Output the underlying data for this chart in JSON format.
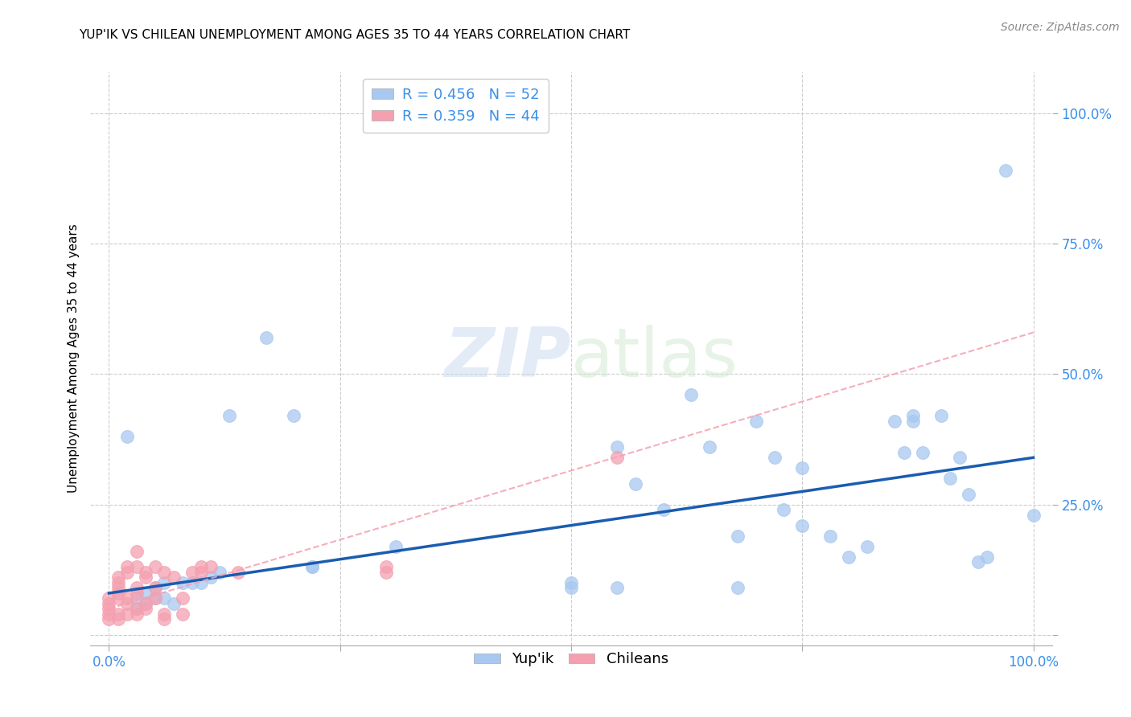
{
  "title": "YUP'IK VS CHILEAN UNEMPLOYMENT AMONG AGES 35 TO 44 YEARS CORRELATION CHART",
  "source": "Source: ZipAtlas.com",
  "ylabel": "Unemployment Among Ages 35 to 44 years",
  "xlim": [
    -0.02,
    1.02
  ],
  "ylim": [
    -0.02,
    1.08
  ],
  "xticks": [
    0.0,
    0.25,
    0.5,
    0.75,
    1.0
  ],
  "yticks": [
    0.0,
    0.25,
    0.5,
    0.75,
    1.0
  ],
  "xticklabels": [
    "0.0%",
    "",
    "",
    "",
    "100.0%"
  ],
  "yticklabels": [
    "",
    "25.0%",
    "50.0%",
    "75.0%",
    "100.0%"
  ],
  "legend_labels": [
    "Yup'ik",
    "Chileans"
  ],
  "blue_color": "#A8C8F0",
  "pink_color": "#F4A0B0",
  "trendline_blue_color": "#1A5CB0",
  "trendline_pink_color": "#D04060",
  "watermark_zip": "ZIP",
  "watermark_atlas": "atlas",
  "blue_dots": [
    [
      0.02,
      0.38
    ],
    [
      0.03,
      0.07
    ],
    [
      0.03,
      0.05
    ],
    [
      0.04,
      0.08
    ],
    [
      0.04,
      0.06
    ],
    [
      0.05,
      0.09
    ],
    [
      0.05,
      0.07
    ],
    [
      0.06,
      0.1
    ],
    [
      0.06,
      0.07
    ],
    [
      0.07,
      0.06
    ],
    [
      0.08,
      0.1
    ],
    [
      0.09,
      0.1
    ],
    [
      0.1,
      0.1
    ],
    [
      0.11,
      0.11
    ],
    [
      0.12,
      0.12
    ],
    [
      0.13,
      0.42
    ],
    [
      0.17,
      0.57
    ],
    [
      0.2,
      0.42
    ],
    [
      0.22,
      0.13
    ],
    [
      0.22,
      0.13
    ],
    [
      0.31,
      0.17
    ],
    [
      0.5,
      0.1
    ],
    [
      0.5,
      0.09
    ],
    [
      0.55,
      0.09
    ],
    [
      0.55,
      0.36
    ],
    [
      0.57,
      0.29
    ],
    [
      0.6,
      0.24
    ],
    [
      0.63,
      0.46
    ],
    [
      0.65,
      0.36
    ],
    [
      0.68,
      0.19
    ],
    [
      0.68,
      0.09
    ],
    [
      0.7,
      0.41
    ],
    [
      0.72,
      0.34
    ],
    [
      0.73,
      0.24
    ],
    [
      0.75,
      0.32
    ],
    [
      0.75,
      0.21
    ],
    [
      0.78,
      0.19
    ],
    [
      0.8,
      0.15
    ],
    [
      0.82,
      0.17
    ],
    [
      0.85,
      0.41
    ],
    [
      0.86,
      0.35
    ],
    [
      0.87,
      0.42
    ],
    [
      0.87,
      0.41
    ],
    [
      0.88,
      0.35
    ],
    [
      0.9,
      0.42
    ],
    [
      0.91,
      0.3
    ],
    [
      0.92,
      0.34
    ],
    [
      0.93,
      0.27
    ],
    [
      0.94,
      0.14
    ],
    [
      0.95,
      0.15
    ],
    [
      0.97,
      0.89
    ],
    [
      1.0,
      0.23
    ]
  ],
  "pink_dots": [
    [
      0.0,
      0.04
    ],
    [
      0.0,
      0.03
    ],
    [
      0.0,
      0.05
    ],
    [
      0.0,
      0.06
    ],
    [
      0.0,
      0.07
    ],
    [
      0.01,
      0.03
    ],
    [
      0.01,
      0.04
    ],
    [
      0.01,
      0.07
    ],
    [
      0.01,
      0.08
    ],
    [
      0.01,
      0.09
    ],
    [
      0.01,
      0.1
    ],
    [
      0.01,
      0.11
    ],
    [
      0.02,
      0.04
    ],
    [
      0.02,
      0.06
    ],
    [
      0.02,
      0.07
    ],
    [
      0.02,
      0.12
    ],
    [
      0.02,
      0.13
    ],
    [
      0.03,
      0.04
    ],
    [
      0.03,
      0.05
    ],
    [
      0.03,
      0.08
    ],
    [
      0.03,
      0.09
    ],
    [
      0.03,
      0.13
    ],
    [
      0.03,
      0.16
    ],
    [
      0.04,
      0.05
    ],
    [
      0.04,
      0.06
    ],
    [
      0.04,
      0.11
    ],
    [
      0.04,
      0.12
    ],
    [
      0.05,
      0.07
    ],
    [
      0.05,
      0.09
    ],
    [
      0.05,
      0.13
    ],
    [
      0.06,
      0.03
    ],
    [
      0.06,
      0.04
    ],
    [
      0.06,
      0.12
    ],
    [
      0.07,
      0.11
    ],
    [
      0.08,
      0.04
    ],
    [
      0.08,
      0.07
    ],
    [
      0.09,
      0.12
    ],
    [
      0.1,
      0.12
    ],
    [
      0.1,
      0.13
    ],
    [
      0.11,
      0.13
    ],
    [
      0.14,
      0.12
    ],
    [
      0.3,
      0.12
    ],
    [
      0.3,
      0.13
    ],
    [
      0.55,
      0.34
    ]
  ],
  "blue_trend_x": [
    0.0,
    1.0
  ],
  "blue_trend_y": [
    0.08,
    0.34
  ],
  "pink_trend_x": [
    0.0,
    1.0
  ],
  "pink_trend_y": [
    0.05,
    0.58
  ]
}
